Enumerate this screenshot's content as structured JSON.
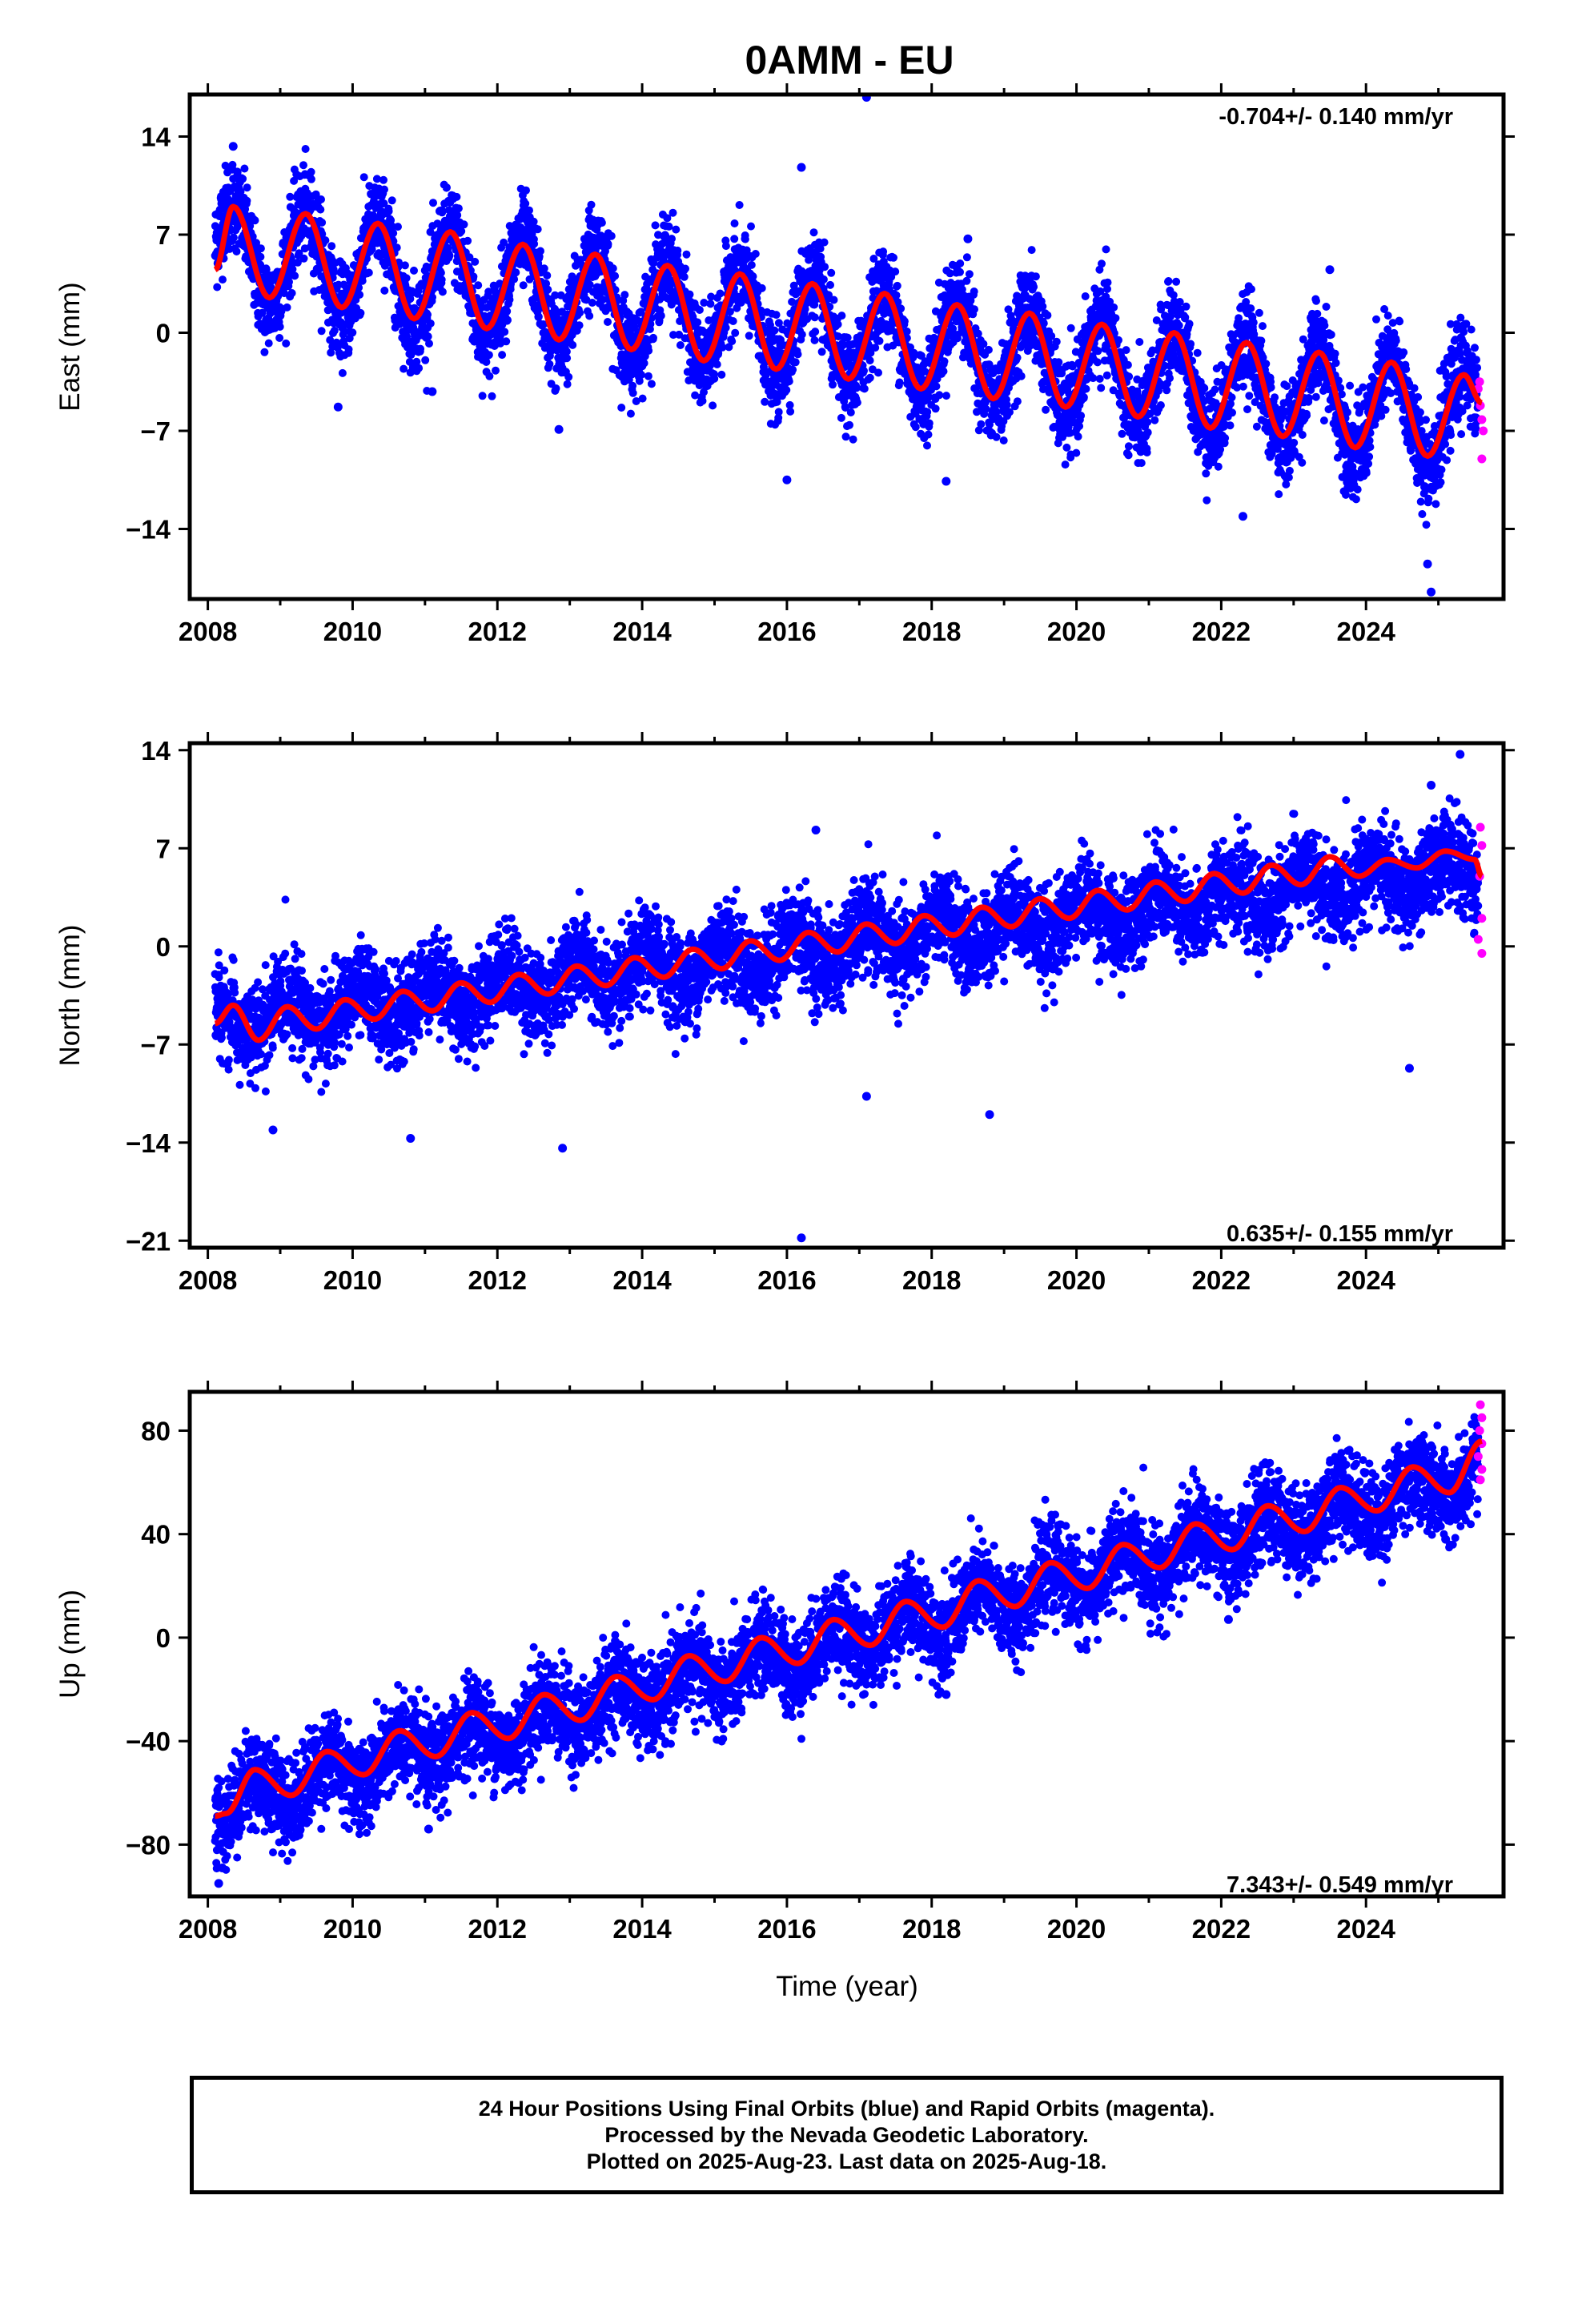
{
  "figure": {
    "title": "0AMM - EU",
    "xlabel": "Time (year)",
    "footer": [
      "24 Hour Positions Using Final Orbits (blue) and Rapid Orbits (magenta).",
      "Processed by the Nevada Geodetic Laboratory.",
      "Plotted on 2025-Aug-23. Last data on 2025-Aug-18."
    ],
    "colors": {
      "final": "#0000ff",
      "rapid": "#ff00ff",
      "model": "#ff0000",
      "axis": "#000000"
    }
  },
  "chart_data": [
    {
      "type": "scatter",
      "name": "east",
      "ylabel": "East (mm)",
      "rate_label": "-0.704+/- 0.140 mm/yr",
      "rate_position": "top-right",
      "xlim": [
        2007.75,
        2025.9
      ],
      "ylim": [
        -19,
        17
      ],
      "xticks": [
        2008,
        2010,
        2012,
        2014,
        2016,
        2018,
        2020,
        2022,
        2024
      ],
      "yticks": [
        14,
        7,
        0,
        -7,
        -14
      ],
      "trend": {
        "start": 2008.1,
        "value_at_start": 6.0,
        "rate_mm_per_yr": -0.704
      },
      "seasonal": {
        "amplitude": 3.5,
        "peak_year_fraction": 0.35
      },
      "model_x": [
        2008.1,
        2008.35,
        2008.85,
        2009.35,
        2009.85,
        2010.35,
        2010.85,
        2011.35,
        2011.85,
        2012.35,
        2012.85,
        2013.35,
        2013.85,
        2014.35,
        2014.85,
        2015.35,
        2015.85,
        2016.35,
        2016.85,
        2017.35,
        2017.85,
        2018.35,
        2018.85,
        2019.35,
        2019.85,
        2020.35,
        2020.85,
        2021.35,
        2021.85,
        2022.35,
        2022.85,
        2023.35,
        2023.85,
        2024.35,
        2024.85,
        2025.35,
        2025.6
      ],
      "model_y": [
        4.5,
        9.0,
        2.5,
        8.5,
        1.8,
        7.8,
        1.0,
        7.2,
        0.3,
        6.3,
        -0.5,
        5.6,
        -1.2,
        4.8,
        -2.0,
        4.2,
        -2.6,
        3.5,
        -3.3,
        2.8,
        -4.0,
        2.0,
        -4.7,
        1.4,
        -5.3,
        0.6,
        -6.0,
        0.0,
        -6.8,
        -0.7,
        -7.4,
        -1.4,
        -8.2,
        -2.1,
        -8.8,
        -3.0,
        -5.0
      ],
      "outliers": [
        [
          2017.1,
          16.8
        ],
        [
          2016.2,
          11.8
        ],
        [
          2008.35,
          13.3
        ],
        [
          2024.9,
          -18.5
        ],
        [
          2024.85,
          -16.5
        ],
        [
          2009.8,
          -5.3
        ],
        [
          2011.1,
          -4.2
        ],
        [
          2012.85,
          -6.9
        ],
        [
          2016.0,
          -10.5
        ],
        [
          2018.2,
          -10.6
        ],
        [
          2022.3,
          -13.1
        ],
        [
          2023.5,
          4.5
        ],
        [
          2018.5,
          6.7
        ]
      ],
      "rapid_points": [
        [
          2025.55,
          -4.0
        ],
        [
          2025.58,
          -5.2
        ],
        [
          2025.6,
          -6.2
        ],
        [
          2025.62,
          -7.0
        ],
        [
          2025.6,
          -9.0
        ],
        [
          2025.57,
          -3.5
        ]
      ]
    },
    {
      "type": "scatter",
      "name": "north",
      "ylabel": "North (mm)",
      "rate_label": "0.635+/- 0.155 mm/yr",
      "rate_position": "bottom-right",
      "xlim": [
        2007.75,
        2025.9
      ],
      "ylim": [
        -21.5,
        14.5
      ],
      "xticks": [
        2008,
        2010,
        2012,
        2014,
        2016,
        2018,
        2020,
        2022,
        2024
      ],
      "yticks": [
        14,
        7,
        0,
        -7,
        -14,
        -21
      ],
      "trend": {
        "start": 2008.1,
        "value_at_start": -5.5,
        "rate_mm_per_yr": 0.635
      },
      "seasonal": {
        "amplitude": 1.3,
        "peak_year_fraction": 0.1
      },
      "model_x": [
        2008.1,
        2008.35,
        2008.7,
        2009.1,
        2009.5,
        2009.9,
        2010.3,
        2010.7,
        2011.1,
        2011.5,
        2011.9,
        2012.3,
        2012.7,
        2013.1,
        2013.5,
        2013.9,
        2014.3,
        2014.7,
        2015.1,
        2015.5,
        2015.9,
        2016.3,
        2016.7,
        2017.1,
        2017.5,
        2017.9,
        2018.3,
        2018.7,
        2019.1,
        2019.5,
        2019.9,
        2020.3,
        2020.7,
        2021.1,
        2021.5,
        2021.9,
        2022.3,
        2022.7,
        2023.1,
        2023.5,
        2023.9,
        2024.3,
        2024.7,
        2025.1,
        2025.5,
        2025.6
      ],
      "model_y": [
        -5.5,
        -4.2,
        -6.7,
        -4.3,
        -5.9,
        -3.8,
        -5.2,
        -3.2,
        -4.6,
        -2.6,
        -4.0,
        -2.0,
        -3.4,
        -1.4,
        -2.8,
        -0.8,
        -2.2,
        -0.2,
        -1.6,
        0.4,
        -1.0,
        1.0,
        -0.4,
        1.6,
        0.2,
        2.2,
        0.8,
        2.8,
        1.4,
        3.4,
        2.0,
        4.0,
        2.6,
        4.6,
        3.2,
        5.2,
        3.8,
        5.8,
        4.4,
        6.4,
        5.0,
        6.2,
        5.6,
        6.8,
        6.2,
        5.0
      ],
      "outliers": [
        [
          2016.2,
          -20.8
        ],
        [
          2025.3,
          13.7
        ],
        [
          2024.9,
          11.5
        ],
        [
          2012.9,
          -14.4
        ],
        [
          2008.9,
          -13.1
        ],
        [
          2010.8,
          -13.7
        ],
        [
          2017.1,
          -10.7
        ],
        [
          2024.6,
          -8.7
        ],
        [
          2018.8,
          -12.0
        ],
        [
          2016.4,
          8.3
        ]
      ],
      "rapid_points": [
        [
          2025.58,
          8.5
        ],
        [
          2025.6,
          7.2
        ],
        [
          2025.57,
          5.0
        ],
        [
          2025.6,
          2.0
        ],
        [
          2025.55,
          0.5
        ],
        [
          2025.6,
          -0.5
        ]
      ]
    },
    {
      "type": "scatter",
      "name": "up",
      "ylabel": "Up (mm)",
      "rate_label": "7.343+/- 0.549 mm/yr",
      "rate_position": "bottom-right",
      "xlim": [
        2007.75,
        2025.9
      ],
      "ylim": [
        -100,
        95
      ],
      "xticks": [
        2008,
        2010,
        2012,
        2014,
        2016,
        2018,
        2020,
        2022,
        2024
      ],
      "yticks": [
        80,
        40,
        0,
        -40,
        -80
      ],
      "trend": {
        "start": 2008.1,
        "value_at_start": -65,
        "rate_mm_per_yr": 7.343
      },
      "seasonal": {
        "amplitude": 7,
        "peak_year_fraction": 0.65
      },
      "model_x": [
        2008.1,
        2008.25,
        2008.65,
        2009.15,
        2009.65,
        2010.15,
        2010.65,
        2011.15,
        2011.65,
        2012.15,
        2012.65,
        2013.15,
        2013.65,
        2014.15,
        2014.65,
        2015.15,
        2015.65,
        2016.15,
        2016.65,
        2017.15,
        2017.65,
        2018.15,
        2018.65,
        2019.15,
        2019.65,
        2020.15,
        2020.65,
        2021.15,
        2021.65,
        2022.15,
        2022.65,
        2023.15,
        2023.65,
        2024.15,
        2024.65,
        2025.15,
        2025.6
      ],
      "model_y": [
        -69,
        -68,
        -51,
        -61,
        -44,
        -53,
        -36,
        -46,
        -29,
        -39,
        -22,
        -32,
        -15,
        -24,
        -7,
        -17,
        0,
        -10,
        7,
        -3,
        14,
        4,
        22,
        12,
        29,
        19,
        36,
        27,
        44,
        34,
        51,
        41,
        58,
        49,
        66,
        56,
        76
      ],
      "outliers": [
        [
          2008.15,
          -95
        ],
        [
          2008.2,
          -89
        ],
        [
          2011.05,
          -74
        ],
        [
          2016.2,
          -23
        ],
        [
          2018.2,
          -22
        ],
        [
          2022.1,
          7
        ],
        [
          2025.1,
          38
        ]
      ],
      "rapid_points": [
        [
          2025.58,
          90
        ],
        [
          2025.6,
          85
        ],
        [
          2025.57,
          80
        ],
        [
          2025.6,
          75
        ],
        [
          2025.55,
          70
        ],
        [
          2025.6,
          65
        ],
        [
          2025.58,
          61
        ]
      ]
    }
  ]
}
